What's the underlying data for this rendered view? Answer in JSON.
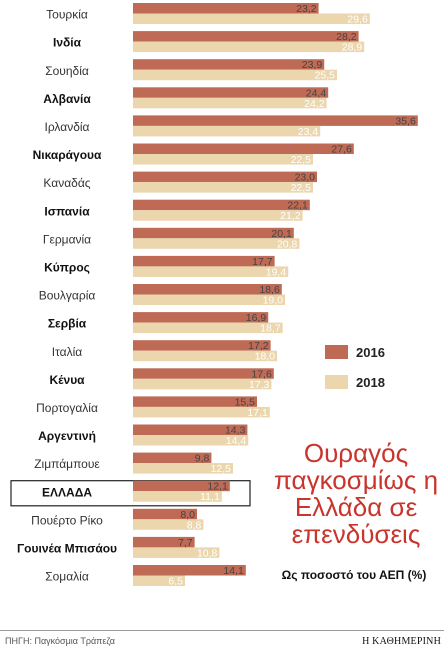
{
  "headline": "Ουραγός παγκοσμίως η Ελλάδα σε επενδύσεις",
  "subtitle": "Ως ποσοστό του ΑΕΠ (%)",
  "source": "ΠΗΓΗ: Παγκόσμια Τράπεζα",
  "brand": "Η ΚΑΘΗΜΕΡΙΝΗ",
  "colors": {
    "s2016": "#bf6a55",
    "s2018": "#ebd6ad",
    "headline": "#c9352c"
  },
  "chart_data": {
    "type": "bar",
    "orientation": "horizontal",
    "legend_position": "right",
    "categories": [
      "Τουρκία",
      "Ινδία",
      "Σουηδία",
      "Αλβανία",
      "Ιρλανδία",
      "Νικαράγουα",
      "Καναδάς",
      "Ισπανία",
      "Γερμανία",
      "Κύπρος",
      "Βουλγαρία",
      "Σερβία",
      "Ιταλία",
      "Κένυα",
      "Πορτογαλία",
      "Αργεντινή",
      "Ζιμπάμπουε",
      "ΕΛΛΑΔΑ",
      "Πουέρτο Ρίκο",
      "Γουινέα Μπισάου",
      "Σομαλία"
    ],
    "bold_categories": [
      "Ινδία",
      "Αλβανία",
      "Νικαράγουα",
      "Ισπανία",
      "Κύπρος",
      "Σερβία",
      "Κένυα",
      "Αργεντινή",
      "ΕΛΛΑΔΑ",
      "Γουινέα Μπισάου"
    ],
    "highlight_category": "ΕΛΛΑΔΑ",
    "series": [
      {
        "name": "2016",
        "values": [
          23.2,
          28.2,
          23.9,
          24.4,
          35.6,
          27.6,
          23.0,
          22.1,
          20.1,
          17.7,
          18.6,
          16.9,
          17.2,
          17.6,
          15.5,
          14.3,
          9.8,
          12.1,
          8.0,
          7.7,
          14.1
        ],
        "labels": [
          "23,2",
          "28,2",
          "23,9",
          "24,4",
          "35,6",
          "27,6",
          "23,0",
          "22,1",
          "20,1",
          "17,7",
          "18,6",
          "16,9",
          "17,2",
          "17,6",
          "15,5",
          "14,3",
          "9,8",
          "12,1",
          "8,0",
          "7,7",
          "14,1"
        ]
      },
      {
        "name": "2018",
        "values": [
          29.6,
          28.9,
          25.5,
          24.2,
          23.4,
          22.5,
          22.5,
          21.2,
          20.8,
          19.4,
          19.0,
          18.7,
          18.0,
          17.3,
          17.1,
          14.4,
          12.5,
          11.1,
          8.8,
          10.8,
          6.5
        ],
        "labels": [
          "29,6",
          "28,9",
          "25,5",
          "24,2",
          "23,4",
          "22,5",
          "22,5",
          "21,2",
          "20,8",
          "19,4",
          "19,0",
          "18,7",
          "18,0",
          "17,3",
          "17,1",
          "14,4",
          "12,5",
          "11,1",
          "8,8",
          "10,8",
          "6,5"
        ]
      }
    ]
  }
}
